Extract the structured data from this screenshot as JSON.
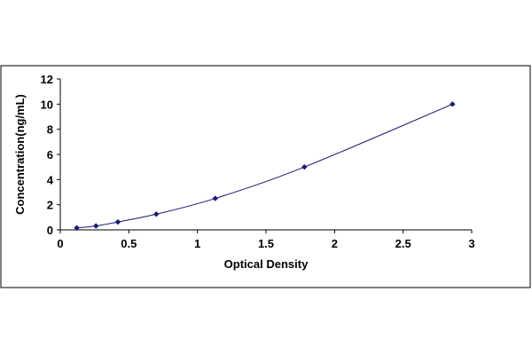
{
  "chart_data": {
    "type": "scatter",
    "title": "",
    "xlabel": "Optical Density",
    "ylabel": "Concentration(ng/mL)",
    "xlim": [
      0,
      3
    ],
    "ylim": [
      0,
      12
    ],
    "x_ticks": [
      "0",
      "0.5",
      "1",
      "1.5",
      "2",
      "2.5",
      "3"
    ],
    "y_ticks": [
      "0",
      "2",
      "4",
      "6",
      "8",
      "10",
      "12"
    ],
    "grid": false,
    "legend": "none",
    "trendline": "smooth curve through points",
    "series": [
      {
        "points": [
          {
            "x": 0.12,
            "y": 0.156
          },
          {
            "x": 0.26,
            "y": 0.312
          },
          {
            "x": 0.42,
            "y": 0.625
          },
          {
            "x": 0.7,
            "y": 1.25
          },
          {
            "x": 1.13,
            "y": 2.5
          },
          {
            "x": 1.78,
            "y": 5.0
          },
          {
            "x": 2.86,
            "y": 10.0
          }
        ]
      }
    ],
    "colors": {
      "marker": "#1a1a6e",
      "line": "#1a1a6e",
      "axis": "#000000",
      "frame": "#000000"
    }
  }
}
